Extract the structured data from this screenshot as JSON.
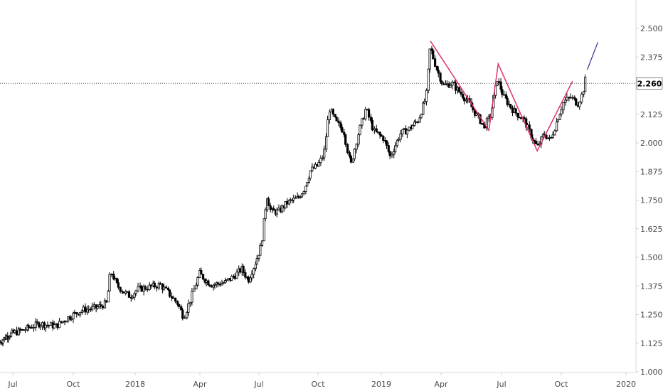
{
  "chart_data": {
    "type": "candlestick",
    "ylim": [
      1.0,
      2.55
    ],
    "y_ticks": [
      "1.000",
      "1.125",
      "1.250",
      "1.375",
      "1.500",
      "1.625",
      "1.750",
      "1.875",
      "2.000",
      "2.125",
      "2.250",
      "2.375",
      "2.500"
    ],
    "x_ticks": [
      "Jul",
      "Oct",
      "2018",
      "Apr",
      "Jul",
      "Oct",
      "2019",
      "Apr",
      "Jul",
      "Oct",
      "2020"
    ],
    "current_price": {
      "value": 2.26,
      "label": "2.260"
    },
    "grid": false,
    "colors": {
      "candle": "#000000",
      "pattern_line": "#e0316e",
      "projection_line": "#2a2e8c",
      "price_line": "#555555",
      "price_label_bg": "#ffffff"
    },
    "price_path": [
      [
        "2017-06-01",
        1.13
      ],
      [
        "2017-06-20",
        1.16
      ],
      [
        "2017-07-15",
        1.18
      ],
      [
        "2017-08-10",
        1.21
      ],
      [
        "2017-09-05",
        1.2
      ],
      [
        "2017-09-25",
        1.24
      ],
      [
        "2017-10-15",
        1.27
      ],
      [
        "2017-11-05",
        1.28
      ],
      [
        "2017-11-20",
        1.3
      ],
      [
        "2017-11-26",
        1.44
      ],
      [
        "2017-12-05",
        1.38
      ],
      [
        "2017-12-15",
        1.35
      ],
      [
        "2017-12-25",
        1.33
      ],
      [
        "2018-01-05",
        1.36
      ],
      [
        "2018-01-20",
        1.37
      ],
      [
        "2018-02-05",
        1.38
      ],
      [
        "2018-02-15",
        1.35
      ],
      [
        "2018-03-01",
        1.3
      ],
      [
        "2018-03-10",
        1.24
      ],
      [
        "2018-03-20",
        1.32
      ],
      [
        "2018-04-01",
        1.43
      ],
      [
        "2018-04-10",
        1.4
      ],
      [
        "2018-04-20",
        1.38
      ],
      [
        "2018-05-10",
        1.39
      ],
      [
        "2018-05-25",
        1.42
      ],
      [
        "2018-06-05",
        1.45
      ],
      [
        "2018-06-15",
        1.4
      ],
      [
        "2018-06-25",
        1.47
      ],
      [
        "2018-07-05",
        1.55
      ],
      [
        "2018-07-10",
        1.68
      ],
      [
        "2018-07-14",
        1.77
      ],
      [
        "2018-07-20",
        1.7
      ],
      [
        "2018-08-01",
        1.7
      ],
      [
        "2018-08-15",
        1.74
      ],
      [
        "2018-09-01",
        1.76
      ],
      [
        "2018-09-10",
        1.8
      ],
      [
        "2018-09-20",
        1.88
      ],
      [
        "2018-10-01",
        1.9
      ],
      [
        "2018-10-10",
        1.95
      ],
      [
        "2018-10-18",
        2.15
      ],
      [
        "2018-10-28",
        2.09
      ],
      [
        "2018-11-08",
        2.05
      ],
      [
        "2018-11-18",
        1.9
      ],
      [
        "2018-11-28",
        2.03
      ],
      [
        "2018-12-10",
        2.15
      ],
      [
        "2018-12-22",
        2.05
      ],
      [
        "2019-01-05",
        2.02
      ],
      [
        "2019-01-15",
        1.94
      ],
      [
        "2019-01-30",
        2.04
      ],
      [
        "2019-02-12",
        2.06
      ],
      [
        "2019-02-26",
        2.1
      ],
      [
        "2019-03-10",
        2.2
      ],
      [
        "2019-03-16",
        2.42
      ],
      [
        "2019-03-25",
        2.33
      ],
      [
        "2019-04-05",
        2.25
      ],
      [
        "2019-04-18",
        2.26
      ],
      [
        "2019-04-30",
        2.22
      ],
      [
        "2019-05-12",
        2.18
      ],
      [
        "2019-05-25",
        2.12
      ],
      [
        "2019-06-05",
        2.07
      ],
      [
        "2019-06-15",
        2.12
      ],
      [
        "2019-06-25",
        2.28
      ],
      [
        "2019-07-05",
        2.2
      ],
      [
        "2019-07-20",
        2.14
      ],
      [
        "2019-08-05",
        2.1
      ],
      [
        "2019-08-18",
        2.02
      ],
      [
        "2019-08-26",
        1.98
      ],
      [
        "2019-09-05",
        2.04
      ],
      [
        "2019-09-15",
        2.01
      ],
      [
        "2019-09-25",
        2.1
      ],
      [
        "2019-10-05",
        2.18
      ],
      [
        "2019-10-15",
        2.2
      ],
      [
        "2019-10-25",
        2.17
      ],
      [
        "2019-11-01",
        2.22
      ],
      [
        "2019-11-05",
        2.28
      ]
    ],
    "pattern_points": [
      [
        "2019-03-16",
        2.445
      ],
      [
        "2019-06-12",
        2.055
      ],
      [
        "2019-06-26",
        2.345
      ],
      [
        "2019-08-25",
        1.965
      ],
      [
        "2019-10-17",
        2.27
      ]
    ],
    "projection": [
      [
        "2019-11-07",
        2.32
      ],
      [
        "2019-11-22",
        2.44
      ]
    ]
  }
}
